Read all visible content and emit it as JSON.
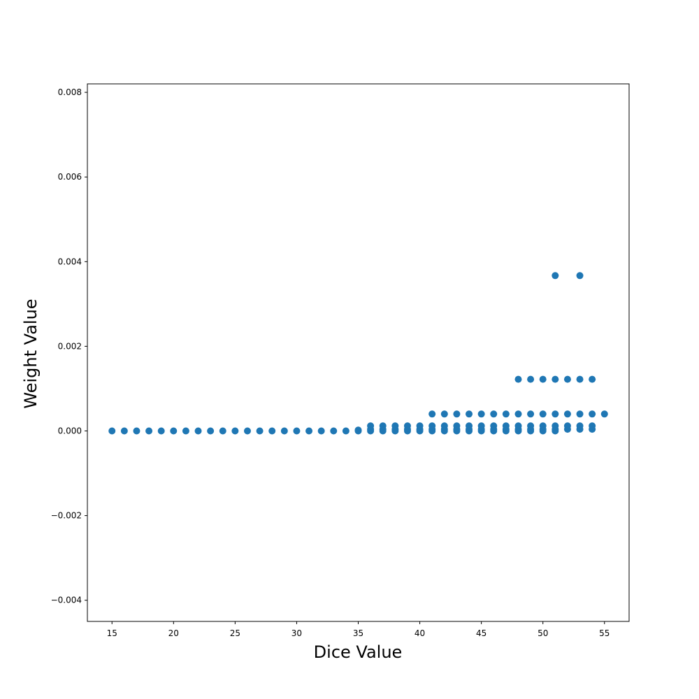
{
  "chart_data": {
    "type": "scatter",
    "xlabel": "Dice Value",
    "ylabel": "Weight Value",
    "xlim": [
      13,
      57
    ],
    "ylim": [
      -0.0045,
      0.0082
    ],
    "xticks": [
      15,
      20,
      25,
      30,
      35,
      40,
      45,
      50,
      55
    ],
    "yticks": [
      -0.004,
      -0.002,
      0.0,
      0.002,
      0.004,
      0.006,
      0.008
    ],
    "ytick_labels": [
      "−0.004",
      "−0.002",
      "0.000",
      "0.002",
      "0.004",
      "0.006",
      "0.008"
    ],
    "marker_color": "#1f77b4",
    "grid": false,
    "series": [
      {
        "points": [
          [
            15,
            0.0
          ],
          [
            16,
            0.0
          ],
          [
            17,
            0.0
          ],
          [
            18,
            0.0
          ],
          [
            19,
            0.0
          ],
          [
            20,
            0.0
          ],
          [
            21,
            0.0
          ],
          [
            22,
            0.0
          ],
          [
            23,
            0.0
          ],
          [
            24,
            0.0
          ],
          [
            25,
            0.0
          ],
          [
            26,
            0.0
          ],
          [
            27,
            0.0
          ],
          [
            28,
            0.0
          ],
          [
            29,
            0.0
          ],
          [
            30,
            0.0
          ],
          [
            31,
            0.0
          ],
          [
            32,
            0.0
          ],
          [
            33,
            0.0
          ],
          [
            34,
            0.0
          ],
          [
            35,
            0.0
          ],
          [
            35,
            2e-05
          ],
          [
            36,
            0.0
          ],
          [
            36,
            4e-05
          ],
          [
            36,
            0.00012
          ],
          [
            37,
            0.0
          ],
          [
            37,
            4e-05
          ],
          [
            37,
            0.00012
          ],
          [
            38,
            0.0
          ],
          [
            38,
            4e-05
          ],
          [
            38,
            0.00012
          ],
          [
            39,
            0.0
          ],
          [
            39,
            4e-05
          ],
          [
            39,
            0.00012
          ],
          [
            40,
            0.0
          ],
          [
            40,
            4e-05
          ],
          [
            40,
            0.00012
          ],
          [
            41,
            0.0
          ],
          [
            41,
            4e-05
          ],
          [
            41,
            0.00012
          ],
          [
            41,
            0.0004
          ],
          [
            42,
            0.0
          ],
          [
            42,
            4e-05
          ],
          [
            42,
            0.00012
          ],
          [
            42,
            0.0004
          ],
          [
            43,
            0.0
          ],
          [
            43,
            4e-05
          ],
          [
            43,
            0.00012
          ],
          [
            43,
            0.0004
          ],
          [
            44,
            0.0
          ],
          [
            44,
            4e-05
          ],
          [
            44,
            0.00012
          ],
          [
            44,
            0.0004
          ],
          [
            45,
            0.0
          ],
          [
            45,
            4e-05
          ],
          [
            45,
            0.00012
          ],
          [
            45,
            0.0004
          ],
          [
            46,
            0.0
          ],
          [
            46,
            4e-05
          ],
          [
            46,
            0.00012
          ],
          [
            46,
            0.0004
          ],
          [
            47,
            0.0
          ],
          [
            47,
            4e-05
          ],
          [
            47,
            0.00012
          ],
          [
            47,
            0.0004
          ],
          [
            48,
            0.0
          ],
          [
            48,
            4e-05
          ],
          [
            48,
            0.00012
          ],
          [
            48,
            0.0004
          ],
          [
            48,
            0.00122
          ],
          [
            49,
            0.0
          ],
          [
            49,
            4e-05
          ],
          [
            49,
            0.00012
          ],
          [
            49,
            0.0004
          ],
          [
            49,
            0.00122
          ],
          [
            50,
            0.0
          ],
          [
            50,
            4e-05
          ],
          [
            50,
            0.00012
          ],
          [
            50,
            0.0004
          ],
          [
            50,
            0.00122
          ],
          [
            51,
            0.0
          ],
          [
            51,
            4e-05
          ],
          [
            51,
            0.00012
          ],
          [
            51,
            0.0004
          ],
          [
            51,
            0.00122
          ],
          [
            51,
            0.00367
          ],
          [
            52,
            4e-05
          ],
          [
            52,
            0.00012
          ],
          [
            52,
            0.0004
          ],
          [
            52,
            0.00122
          ],
          [
            53,
            4e-05
          ],
          [
            53,
            0.00012
          ],
          [
            53,
            0.0004
          ],
          [
            53,
            0.00122
          ],
          [
            53,
            0.00367
          ],
          [
            54,
            4e-05
          ],
          [
            54,
            0.00012
          ],
          [
            54,
            0.0004
          ],
          [
            54,
            0.00122
          ],
          [
            55,
            0.0004
          ]
        ]
      }
    ]
  }
}
